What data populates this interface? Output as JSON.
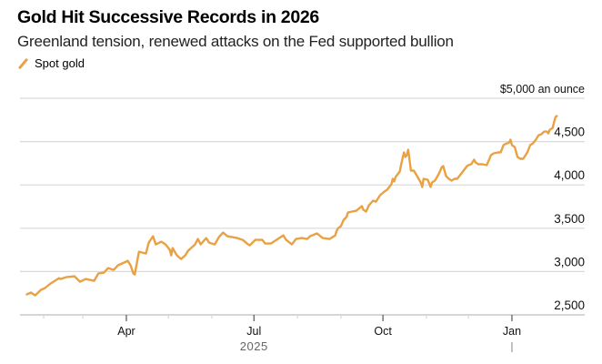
{
  "header": {
    "title": "Gold Hit Successive Records in 2026",
    "subtitle": "Greenland tension, renewed attacks on the Fed supported bullion",
    "legend_label": "Spot gold",
    "legend_icon": "diagonal-line-swatch"
  },
  "colors": {
    "series": "#e9a144",
    "grid": "#d9d9d9",
    "axis": "#d6d6d6",
    "tick": "#555555"
  },
  "chart_data": {
    "type": "line",
    "title": "Gold Hit Successive Records in 2026",
    "subtitle": "Greenland tension, renewed attacks on the Fed supported bullion",
    "xlabel": "2025",
    "ylabel": "",
    "unit_label": "$5,000 an ounce",
    "ylim": [
      2500,
      5000
    ],
    "xlim_days_since_2025_01_01": [
      14,
      417
    ],
    "grid": true,
    "legend": "top-left",
    "y_ticks": [
      {
        "value": 5000,
        "label": "$5,000 an ounce"
      },
      {
        "value": 4500,
        "label": "4,500"
      },
      {
        "value": 4000,
        "label": "4,000"
      },
      {
        "value": 3500,
        "label": "3,500"
      },
      {
        "value": 3000,
        "label": "3,000"
      },
      {
        "value": 2500,
        "label": "2,500"
      }
    ],
    "x_ticks": [
      {
        "day": 31,
        "label": "",
        "major": false
      },
      {
        "day": 59,
        "label": "",
        "major": false
      },
      {
        "day": 90,
        "label": "Apr",
        "major": true
      },
      {
        "day": 120,
        "label": "",
        "major": false
      },
      {
        "day": 151,
        "label": "",
        "major": false
      },
      {
        "day": 181,
        "label": "Jul",
        "major": true
      },
      {
        "day": 212,
        "label": "",
        "major": false
      },
      {
        "day": 243,
        "label": "",
        "major": false
      },
      {
        "day": 273,
        "label": "Oct",
        "major": true
      },
      {
        "day": 304,
        "label": "",
        "major": false
      },
      {
        "day": 334,
        "label": "",
        "major": false
      },
      {
        "day": 365,
        "label": "Jan",
        "major": true
      }
    ],
    "year_label": {
      "label": "2025",
      "day": 181
    },
    "year_boundary_day": 365,
    "series": [
      {
        "name": "Spot gold",
        "x_unit": "days since 2025-01-01",
        "points": [
          [
            19,
            2736
          ],
          [
            22,
            2757
          ],
          [
            25,
            2725
          ],
          [
            29,
            2788
          ],
          [
            32,
            2810
          ],
          [
            36,
            2862
          ],
          [
            39,
            2893
          ],
          [
            42,
            2924
          ],
          [
            43,
            2914
          ],
          [
            47,
            2935
          ],
          [
            53,
            2945
          ],
          [
            57,
            2882
          ],
          [
            61,
            2914
          ],
          [
            67,
            2893
          ],
          [
            70,
            2977
          ],
          [
            74,
            2987
          ],
          [
            77,
            3040
          ],
          [
            81,
            3019
          ],
          [
            84,
            3071
          ],
          [
            91,
            3124
          ],
          [
            93,
            3071
          ],
          [
            95,
            2977
          ],
          [
            96,
            2966
          ],
          [
            99,
            3229
          ],
          [
            104,
            3208
          ],
          [
            106,
            3334
          ],
          [
            109,
            3408
          ],
          [
            111,
            3313
          ],
          [
            115,
            3345
          ],
          [
            118,
            3313
          ],
          [
            121,
            3250
          ],
          [
            122,
            3187
          ],
          [
            123,
            3271
          ],
          [
            126,
            3187
          ],
          [
            129,
            3145
          ],
          [
            132,
            3187
          ],
          [
            134,
            3240
          ],
          [
            139,
            3313
          ],
          [
            141,
            3376
          ],
          [
            143,
            3313
          ],
          [
            147,
            3387
          ],
          [
            149,
            3334
          ],
          [
            153,
            3313
          ],
          [
            156,
            3397
          ],
          [
            159,
            3450
          ],
          [
            162,
            3408
          ],
          [
            169,
            3387
          ],
          [
            173,
            3366
          ],
          [
            176,
            3324
          ],
          [
            178,
            3303
          ],
          [
            182,
            3366
          ],
          [
            187,
            3366
          ],
          [
            189,
            3324
          ],
          [
            193,
            3324
          ],
          [
            198,
            3376
          ],
          [
            202,
            3418
          ],
          [
            204,
            3366
          ],
          [
            208,
            3313
          ],
          [
            211,
            3376
          ],
          [
            215,
            3387
          ],
          [
            219,
            3376
          ],
          [
            221,
            3408
          ],
          [
            226,
            3440
          ],
          [
            230,
            3387
          ],
          [
            235,
            3376
          ],
          [
            239,
            3418
          ],
          [
            240,
            3471
          ],
          [
            241,
            3500
          ],
          [
            243,
            3524
          ],
          [
            245,
            3597
          ],
          [
            247,
            3629
          ],
          [
            248,
            3681
          ],
          [
            251,
            3692
          ],
          [
            254,
            3702
          ],
          [
            258,
            3755
          ],
          [
            259,
            3713
          ],
          [
            261,
            3692
          ],
          [
            263,
            3765
          ],
          [
            266,
            3818
          ],
          [
            268,
            3807
          ],
          [
            271,
            3881
          ],
          [
            274,
            3923
          ],
          [
            276,
            3944
          ],
          [
            279,
            4007
          ],
          [
            280,
            4070
          ],
          [
            281,
            4039
          ],
          [
            282,
            4091
          ],
          [
            285,
            4154
          ],
          [
            286,
            4238
          ],
          [
            288,
            4375
          ],
          [
            289,
            4323
          ],
          [
            290,
            4344
          ],
          [
            291,
            4407
          ],
          [
            293,
            4165
          ],
          [
            295,
            4165
          ],
          [
            297,
            4112
          ],
          [
            300,
            4028
          ],
          [
            301,
            3976
          ],
          [
            302,
            4070
          ],
          [
            305,
            4060
          ],
          [
            307,
            3976
          ],
          [
            308,
            4028
          ],
          [
            310,
            4049
          ],
          [
            312,
            4102
          ],
          [
            313,
            4133
          ],
          [
            315,
            4207
          ],
          [
            316,
            4217
          ],
          [
            318,
            4102
          ],
          [
            320,
            4070
          ],
          [
            322,
            4049
          ],
          [
            324,
            4070
          ],
          [
            326,
            4070
          ],
          [
            328,
            4112
          ],
          [
            330,
            4154
          ],
          [
            331,
            4175
          ],
          [
            333,
            4217
          ],
          [
            334,
            4228
          ],
          [
            336,
            4238
          ],
          [
            338,
            4291
          ],
          [
            339,
            4259
          ],
          [
            341,
            4238
          ],
          [
            344,
            4238
          ],
          [
            347,
            4228
          ],
          [
            349,
            4301
          ],
          [
            350,
            4344
          ],
          [
            352,
            4365
          ],
          [
            355,
            4375
          ],
          [
            357,
            4376
          ],
          [
            359,
            4459
          ],
          [
            360,
            4470
          ],
          [
            363,
            4490
          ],
          [
            364,
            4522
          ],
          [
            365,
            4459
          ],
          [
            367,
            4438
          ],
          [
            369,
            4323
          ],
          [
            371,
            4301
          ],
          [
            373,
            4301
          ],
          [
            376,
            4375
          ],
          [
            378,
            4459
          ],
          [
            380,
            4480
          ],
          [
            382,
            4522
          ],
          [
            384,
            4574
          ],
          [
            386,
            4585
          ],
          [
            388,
            4616
          ],
          [
            390,
            4616
          ],
          [
            391,
            4595
          ],
          [
            392,
            4637
          ],
          [
            394,
            4658
          ],
          [
            395,
            4721
          ],
          [
            396,
            4784
          ],
          [
            397,
            4795
          ]
        ]
      }
    ]
  }
}
